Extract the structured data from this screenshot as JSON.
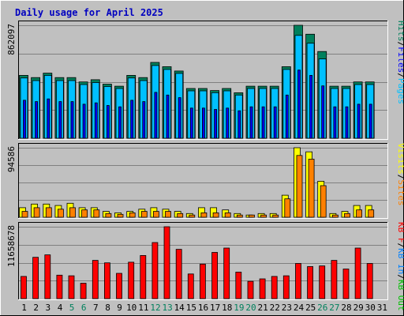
{
  "chart_data": {
    "type": "bar",
    "title": "Daily usage for April 2025",
    "colors": {
      "background": "#c0c0c0",
      "panel": "#c0c0c0",
      "title": "#0000c0",
      "hits": "#00805c",
      "files": "#0000ff",
      "pages": "#00c0ff",
      "visits": "#ffff00",
      "sites": "#ff8000",
      "kb_in": "#0080ff",
      "kb_out": "#00c000",
      "kb_f": "#ff0000",
      "weekend_label": "#00805c",
      "weekday_label": "#000000"
    },
    "categories": [
      "1",
      "2",
      "3",
      "4",
      "5",
      "6",
      "7",
      "8",
      "9",
      "10",
      "11",
      "12",
      "13",
      "14",
      "15",
      "16",
      "17",
      "18",
      "19",
      "20",
      "21",
      "22",
      "23",
      "24",
      "25",
      "26",
      "27",
      "28",
      "29",
      "30",
      "31"
    ],
    "weekend_days": [
      5,
      6,
      12,
      13,
      19,
      20,
      26,
      27
    ],
    "panels": [
      {
        "id": "hits",
        "ymax_label": "862097",
        "ymax": 862097,
        "ylim": [
          0,
          862097
        ],
        "right_labels": [
          {
            "text": "Hits",
            "color": "#00805c"
          },
          {
            "text": "/",
            "color": "#000000"
          },
          {
            "text": "Files",
            "color": "#0000ff"
          },
          {
            "text": "/",
            "color": "#000000"
          },
          {
            "text": "Pages",
            "color": "#00c0ff"
          }
        ],
        "series": [
          {
            "name": "Hits",
            "color": "#00805c",
            "values": [
              480000,
              463000,
              497000,
              463000,
              463000,
              430000,
              447000,
              413000,
              397000,
              480000,
              463000,
              579000,
              546000,
              513000,
              380000,
              380000,
              364000,
              380000,
              347000,
              397000,
              397000,
              397000,
              546000,
              862097,
              794000,
              662000,
              397000,
              397000,
              430000,
              430000,
              0
            ]
          },
          {
            "name": "Pages",
            "color": "#00c0ff",
            "values": [
              460000,
              440000,
              480000,
              440000,
              440000,
              410000,
              425000,
              395000,
              380000,
              460000,
              440000,
              555000,
              525000,
              495000,
              362000,
              362000,
              348000,
              362000,
              330000,
              380000,
              380000,
              380000,
              525000,
              785000,
              725000,
              605000,
              380000,
              380000,
              410000,
              410000,
              0
            ]
          },
          {
            "name": "Files",
            "color": "#0000ff",
            "values": [
              290000,
              280000,
              300000,
              280000,
              280000,
              260000,
              270000,
              250000,
              240000,
              290000,
              280000,
              350000,
              330000,
              310000,
              230000,
              230000,
              220000,
              230000,
              210000,
              240000,
              240000,
              240000,
              330000,
              520000,
              480000,
              400000,
              240000,
              240000,
              260000,
              260000,
              0
            ]
          }
        ]
      },
      {
        "id": "visits",
        "ymax_label": "94586",
        "ymax": 94586,
        "ylim": [
          0,
          94586
        ],
        "right_labels": [
          {
            "text": "Visits",
            "color": "#ffff00"
          },
          {
            "text": "/",
            "color": "#000000"
          },
          {
            "text": "Sites",
            "color": "#ff8000"
          }
        ],
        "series": [
          {
            "name": "Visits",
            "color": "#ffff00",
            "values": [
              13000,
              18000,
              18000,
              16000,
              19000,
              13000,
              13000,
              8000,
              6000,
              8000,
              11000,
              13000,
              11000,
              8000,
              5000,
              13000,
              13000,
              10000,
              5000,
              3000,
              5000,
              5000,
              30000,
              94586,
              89000,
              49000,
              5000,
              8000,
              16000,
              16000,
              0
            ]
          },
          {
            "name": "Sites",
            "color": "#ff8000",
            "values": [
              8000,
              13000,
              13000,
              11000,
              13000,
              10000,
              10000,
              5000,
              4000,
              6000,
              8000,
              8000,
              8000,
              5000,
              3000,
              6000,
              6000,
              6000,
              3000,
              3000,
              3000,
              3000,
              25000,
              84000,
              79000,
              43000,
              3000,
              5000,
              10000,
              10000,
              0
            ]
          }
        ]
      },
      {
        "id": "kbytes",
        "ymax_label": "11658678",
        "ymax": 11658678,
        "ylim": [
          0,
          11658678
        ],
        "right_labels": [
          {
            "text": "KB F",
            "color": "#ff0000"
          },
          {
            "text": "/",
            "color": "#000000"
          },
          {
            "text": "KB In",
            "color": "#0080ff"
          },
          {
            "text": "/",
            "color": "#000000"
          },
          {
            "text": "KB Out",
            "color": "#00c000"
          }
        ],
        "series": [
          {
            "name": "KB F",
            "color": "#ff0000",
            "values": [
              3600000,
              6700000,
              7100000,
              3800000,
              3700000,
              2500000,
              6200000,
              5800000,
              4100000,
              5900000,
              7000000,
              9100000,
              11658678,
              8000000,
              4000000,
              5600000,
              7500000,
              8200000,
              4300000,
              2800000,
              3200000,
              3600000,
              3700000,
              5700000,
              5200000,
              5300000,
              6200000,
              4800000,
              8200000,
              5700000,
              0
            ]
          }
        ]
      }
    ]
  }
}
